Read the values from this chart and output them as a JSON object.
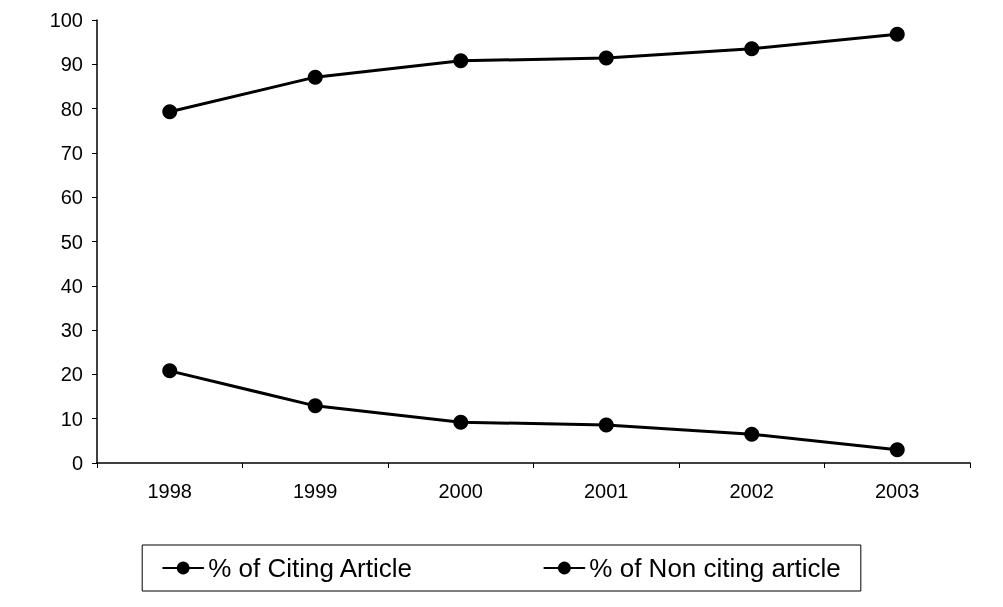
{
  "chart_data": {
    "type": "line",
    "categories": [
      "1998",
      "1999",
      "2000",
      "2001",
      "2002",
      "2003"
    ],
    "series": [
      {
        "name": "% of Citing Article",
        "color": "#000000",
        "values": [
          79.3,
          87.1,
          90.8,
          91.4,
          93.5,
          96.8
        ]
      },
      {
        "name": "% of Non citing article",
        "color": "#000000",
        "values": [
          20.8,
          12.9,
          9.2,
          8.6,
          6.5,
          3.0
        ]
      }
    ],
    "ylim": [
      0,
      100
    ],
    "yticks": [
      0,
      10,
      20,
      30,
      40,
      50,
      60,
      70,
      80,
      90,
      100
    ],
    "grid": false,
    "legend": "bottom",
    "marker": "circle",
    "line_style": "solid"
  }
}
